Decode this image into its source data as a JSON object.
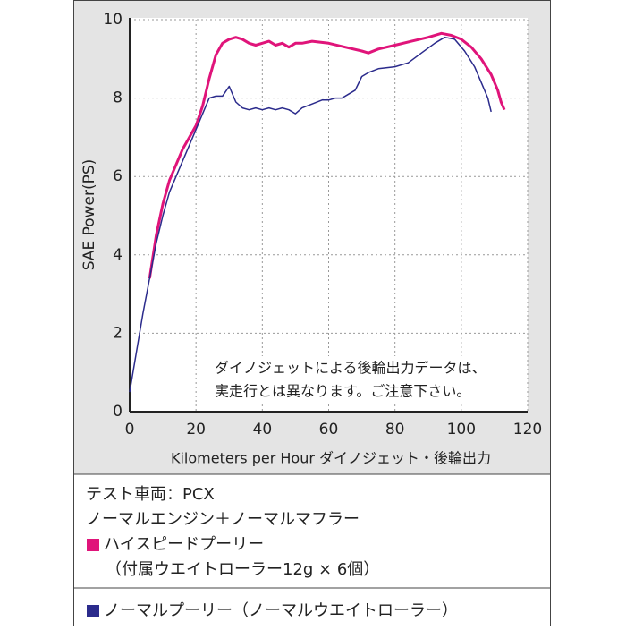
{
  "chart_data": {
    "type": "line",
    "x_label": "Kilometers per Hour ダイノジェット・後輪出力",
    "y_label": "SAE Power(PS)",
    "annotation": [
      "ダイノジェットによる後輪出力データは、",
      "実走行とは異なります。ご注意下さい。"
    ],
    "xlim": [
      0,
      120
    ],
    "xticks": [
      0,
      20,
      40,
      60,
      80,
      100,
      120
    ],
    "ylim": [
      0,
      10
    ],
    "yticks": [
      0,
      2,
      4,
      6,
      8,
      10
    ],
    "grid": true,
    "series": [
      {
        "name": "ハイスピードプーリー",
        "color": "#e0147a",
        "x": [
          6,
          8,
          10,
          12,
          14,
          16,
          18,
          20,
          22,
          24,
          26,
          28,
          30,
          32,
          34,
          36,
          38,
          40,
          42,
          44,
          46,
          48,
          50,
          52,
          55,
          60,
          65,
          70,
          72,
          75,
          80,
          85,
          90,
          94,
          97,
          100,
          103,
          106,
          109,
          111,
          112,
          113
        ],
        "values": [
          3.4,
          4.5,
          5.3,
          5.9,
          6.3,
          6.7,
          7.0,
          7.3,
          7.8,
          8.5,
          9.1,
          9.4,
          9.5,
          9.55,
          9.5,
          9.4,
          9.35,
          9.4,
          9.45,
          9.35,
          9.4,
          9.3,
          9.4,
          9.4,
          9.45,
          9.4,
          9.3,
          9.2,
          9.15,
          9.25,
          9.35,
          9.45,
          9.55,
          9.65,
          9.6,
          9.5,
          9.3,
          9.0,
          8.6,
          8.2,
          7.9,
          7.7
        ]
      },
      {
        "name": "ノーマルプーリー（ノーマルウエイトローラー）",
        "color": "#2b2b8c",
        "x": [
          0,
          2,
          4,
          6,
          8,
          10,
          12,
          14,
          16,
          18,
          20,
          22,
          24,
          26,
          28,
          30,
          32,
          34,
          36,
          38,
          40,
          42,
          44,
          46,
          48,
          50,
          52,
          55,
          58,
          60,
          62,
          64,
          66,
          68,
          70,
          72,
          75,
          80,
          84,
          88,
          92,
          95,
          98,
          101,
          104,
          106,
          108,
          109
        ],
        "values": [
          0.5,
          1.5,
          2.5,
          3.4,
          4.3,
          5.0,
          5.6,
          6.0,
          6.4,
          6.8,
          7.2,
          7.6,
          8.0,
          8.05,
          8.05,
          8.3,
          7.9,
          7.75,
          7.7,
          7.75,
          7.7,
          7.75,
          7.7,
          7.75,
          7.7,
          7.6,
          7.75,
          7.85,
          7.95,
          7.95,
          8.0,
          8.0,
          8.1,
          8.2,
          8.55,
          8.65,
          8.75,
          8.8,
          8.9,
          9.15,
          9.4,
          9.55,
          9.5,
          9.2,
          8.8,
          8.4,
          8.0,
          7.65
        ]
      }
    ]
  },
  "spec": {
    "vehicle": "テスト車両：PCX",
    "config": "ノーマルエンジン＋ノーマルマフラー",
    "series_note": "（付属ウエイトローラー12g × 6個）"
  }
}
